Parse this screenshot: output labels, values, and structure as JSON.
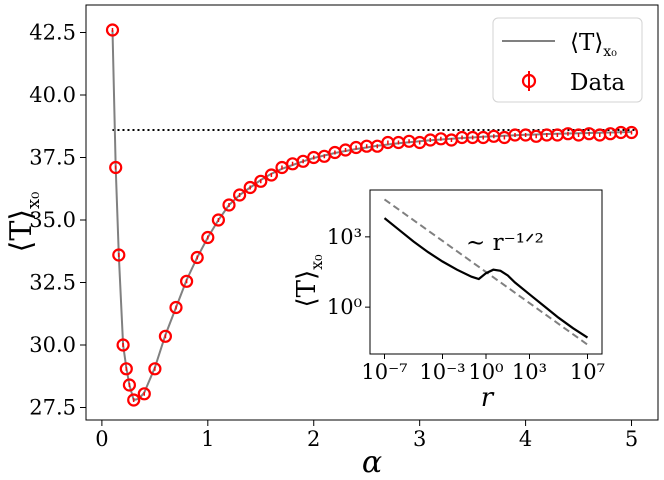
{
  "chart_data": [
    {
      "type": "line",
      "xlabel": "α",
      "ylabel": "⟨T⟩",
      "ylabel_sub": "x₀",
      "xlim": [
        -0.15,
        5.25
      ],
      "ylim": [
        27.0,
        43.6
      ],
      "xticks": [
        0,
        1,
        2,
        3,
        4,
        5
      ],
      "xtick_labels": [
        "0",
        "1",
        "2",
        "3",
        "4",
        "5"
      ],
      "yticks": [
        27.5,
        30.0,
        32.5,
        35.0,
        37.5,
        40.0,
        42.5
      ],
      "ytick_labels": [
        "27.5",
        "30.0",
        "32.5",
        "35.0",
        "37.5",
        "40.0",
        "42.5"
      ],
      "grid": false,
      "legend_position": "top-right",
      "asymptote": {
        "y": 38.6,
        "x_range": [
          0.1,
          5.05
        ],
        "style": "dotted",
        "color": "#000000"
      },
      "series": [
        {
          "name": "⟨T⟩",
          "name_sub": "x₀",
          "kind": "line",
          "color": "#808080",
          "x": [
            0.1,
            0.13,
            0.16,
            0.2,
            0.23,
            0.26,
            0.3,
            0.35,
            0.4,
            0.5,
            0.6,
            0.7,
            0.8,
            0.9,
            1.0,
            1.1,
            1.2,
            1.3,
            1.4,
            1.5,
            1.6,
            1.7,
            1.8,
            1.9,
            2.0,
            2.1,
            2.2,
            2.3,
            2.4,
            2.5,
            2.6,
            2.7,
            2.8,
            2.9,
            3.0,
            3.1,
            3.2,
            3.3,
            3.4,
            3.5,
            3.6,
            3.7,
            3.8,
            3.9,
            4.0,
            4.1,
            4.2,
            4.3,
            4.4,
            4.5,
            4.6,
            4.7,
            4.8,
            4.9,
            5.0
          ],
          "y": [
            42.6,
            37.1,
            33.6,
            30.0,
            29.1,
            28.4,
            27.8,
            27.85,
            28.1,
            29.1,
            30.4,
            31.5,
            32.6,
            33.5,
            34.3,
            35.0,
            35.6,
            36.0,
            36.3,
            36.6,
            36.85,
            37.05,
            37.2,
            37.35,
            37.48,
            37.58,
            37.68,
            37.76,
            37.84,
            37.9,
            37.97,
            38.02,
            38.07,
            38.11,
            38.15,
            38.19,
            38.22,
            38.25,
            38.28,
            38.3,
            38.33,
            38.35,
            38.37,
            38.39,
            38.41,
            38.42,
            38.44,
            38.45,
            38.46,
            38.47,
            38.48,
            38.49,
            38.5,
            38.51,
            38.52
          ]
        },
        {
          "name": "Data",
          "kind": "scatter",
          "color": "#ff0000",
          "x": [
            0.1,
            0.13,
            0.16,
            0.2,
            0.23,
            0.26,
            0.3,
            0.4,
            0.5,
            0.6,
            0.7,
            0.8,
            0.9,
            1.0,
            1.1,
            1.2,
            1.3,
            1.4,
            1.5,
            1.6,
            1.7,
            1.8,
            1.9,
            2.0,
            2.1,
            2.2,
            2.3,
            2.4,
            2.5,
            2.6,
            2.7,
            2.8,
            2.9,
            3.0,
            3.1,
            3.2,
            3.3,
            3.4,
            3.5,
            3.6,
            3.7,
            3.8,
            3.9,
            4.0,
            4.1,
            4.2,
            4.3,
            4.4,
            4.5,
            4.6,
            4.7,
            4.8,
            4.9,
            5.0
          ],
          "y": [
            42.6,
            37.1,
            33.6,
            30.0,
            29.05,
            28.4,
            27.8,
            28.05,
            29.05,
            30.35,
            31.5,
            32.55,
            33.5,
            34.3,
            35.0,
            35.6,
            36.0,
            36.3,
            36.55,
            36.8,
            37.1,
            37.25,
            37.35,
            37.5,
            37.55,
            37.7,
            37.8,
            37.9,
            37.95,
            37.95,
            38.1,
            38.1,
            38.15,
            38.1,
            38.2,
            38.25,
            38.2,
            38.3,
            38.3,
            38.3,
            38.35,
            38.3,
            38.4,
            38.4,
            38.35,
            38.4,
            38.4,
            38.45,
            38.4,
            38.45,
            38.4,
            38.45,
            38.5,
            38.5
          ]
        }
      ]
    },
    {
      "type": "line",
      "inset": true,
      "xlabel": "r",
      "ylabel": "⟨T⟩",
      "ylabel_sub": "x₀",
      "x_scale": "log",
      "y_scale": "log",
      "xlim_log10": [
        -8,
        8
      ],
      "ylim_log10": [
        -2,
        5
      ],
      "xticks_log10": [
        -7,
        -3,
        0,
        3,
        7
      ],
      "xtick_labels": [
        "10⁻⁷",
        "10⁻³",
        "10⁰",
        "10³",
        "10⁷"
      ],
      "yticks_log10": [
        0,
        3
      ],
      "ytick_labels": [
        "10⁰",
        "10³"
      ],
      "annotation": "∼ r⁻¹ᐟ²",
      "series": [
        {
          "kind": "line",
          "color": "#000000",
          "style": "solid",
          "log10_x": [
            -7.0,
            -6.0,
            -5.0,
            -4.0,
            -3.0,
            -2.0,
            -1.0,
            -0.5,
            0.0,
            0.5,
            1.0,
            1.5,
            2.0,
            3.0,
            4.0,
            5.0,
            6.0,
            7.0
          ],
          "log10_y": [
            3.8,
            3.3,
            2.8,
            2.35,
            1.95,
            1.6,
            1.3,
            1.2,
            1.45,
            1.6,
            1.55,
            1.35,
            1.05,
            0.55,
            0.05,
            -0.45,
            -0.9,
            -1.3
          ]
        },
        {
          "kind": "line",
          "color": "#808080",
          "style": "dashed",
          "log10_x": [
            -7.0,
            7.0
          ],
          "log10_y": [
            4.6,
            -1.6
          ]
        }
      ]
    }
  ]
}
